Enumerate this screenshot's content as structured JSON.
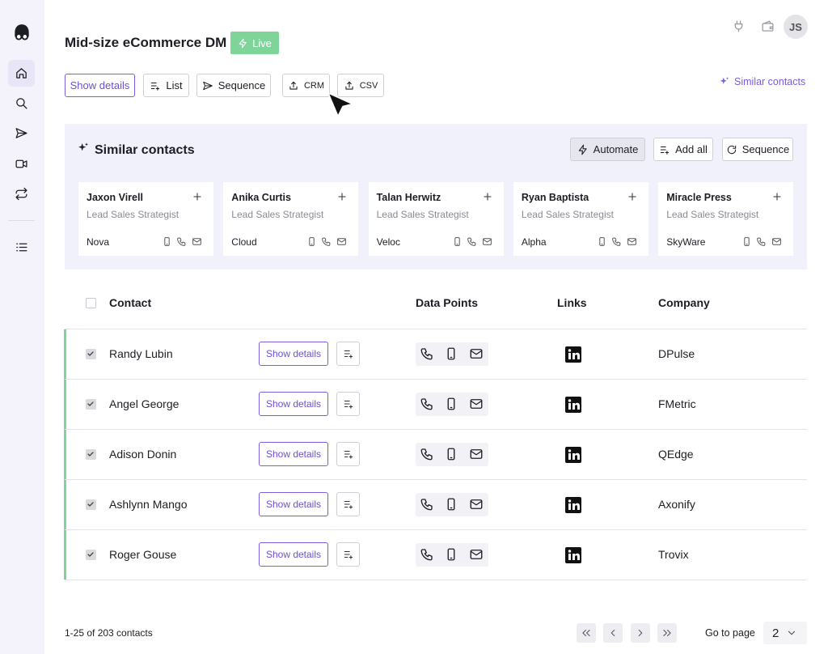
{
  "header": {
    "title": "Mid-size eCommerce DM",
    "status": "Live",
    "avatar": "JS"
  },
  "toolbar": {
    "buttons": [
      "Show details",
      "List",
      "Sequence",
      "CRM",
      "CSV"
    ],
    "link": "Similar contacts"
  },
  "similar": {
    "title": "Similar contacts",
    "actions": [
      "Automate",
      "Add all",
      "Sequence"
    ],
    "cards": [
      {
        "name": "Jaxon Virell",
        "role": "Lead Sales Strategist",
        "company": "Nova"
      },
      {
        "name": "Anika Curtis",
        "role": "Lead Sales Strategist",
        "company": "Cloud"
      },
      {
        "name": "Talan Herwitz",
        "role": "Lead Sales Strategist",
        "company": "Veloc"
      },
      {
        "name": "Ryan Baptista",
        "role": "Lead Sales Strategist",
        "company": "Alpha"
      },
      {
        "name": "Miracle Press",
        "role": "Lead Sales Strategist",
        "company": "SkyWare"
      }
    ]
  },
  "table": {
    "headers": [
      "Contact",
      "Data Points",
      "Links",
      "Company"
    ],
    "row_action": "Show details",
    "rows": [
      {
        "name": "Randy Lubin",
        "company": "DPulse"
      },
      {
        "name": "Angel George",
        "company": "FMetric"
      },
      {
        "name": "Adison Donin",
        "company": "QEdge"
      },
      {
        "name": "Ashlynn Mango",
        "company": "Axonify"
      },
      {
        "name": "Roger Gouse",
        "company": "Trovix"
      }
    ]
  },
  "footer": {
    "range": "1-25 of 203 contacts",
    "goto": "Go to page",
    "page": "2"
  }
}
